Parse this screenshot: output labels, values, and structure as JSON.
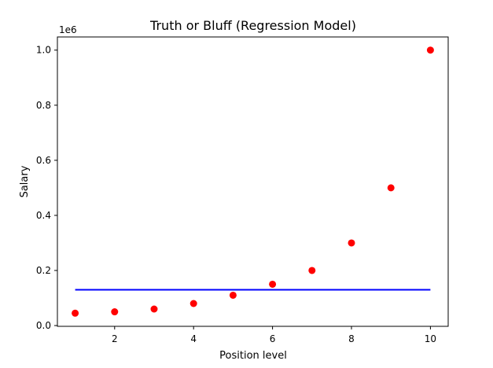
{
  "chart_data": {
    "type": "scatter",
    "title": "Truth or Bluff (Regression Model)",
    "xlabel": "Position level",
    "ylabel": "Salary",
    "y_offset_label": "1e6",
    "xlim": [
      0.55,
      10.45
    ],
    "ylim": [
      -0.0028,
      1.0478
    ],
    "x_ticks": [
      2,
      4,
      6,
      8,
      10
    ],
    "x_tick_labels": [
      "2",
      "4",
      "6",
      "8",
      "10"
    ],
    "y_ticks": [
      0.0,
      0.2,
      0.4,
      0.6,
      0.8,
      1.0
    ],
    "y_tick_labels": [
      "0.0",
      "0.2",
      "0.4",
      "0.6",
      "0.8",
      "1.0"
    ],
    "grid": false,
    "series": [
      {
        "kind": "scatter",
        "color": "#ff0000",
        "x": [
          1,
          2,
          3,
          4,
          5,
          6,
          7,
          8,
          9,
          10
        ],
        "y": [
          0.045,
          0.05,
          0.06,
          0.08,
          0.11,
          0.15,
          0.2,
          0.3,
          0.5,
          1.0
        ]
      },
      {
        "kind": "line",
        "color": "#0000ff",
        "x": [
          1,
          10
        ],
        "y": [
          0.13,
          0.13
        ]
      }
    ]
  }
}
